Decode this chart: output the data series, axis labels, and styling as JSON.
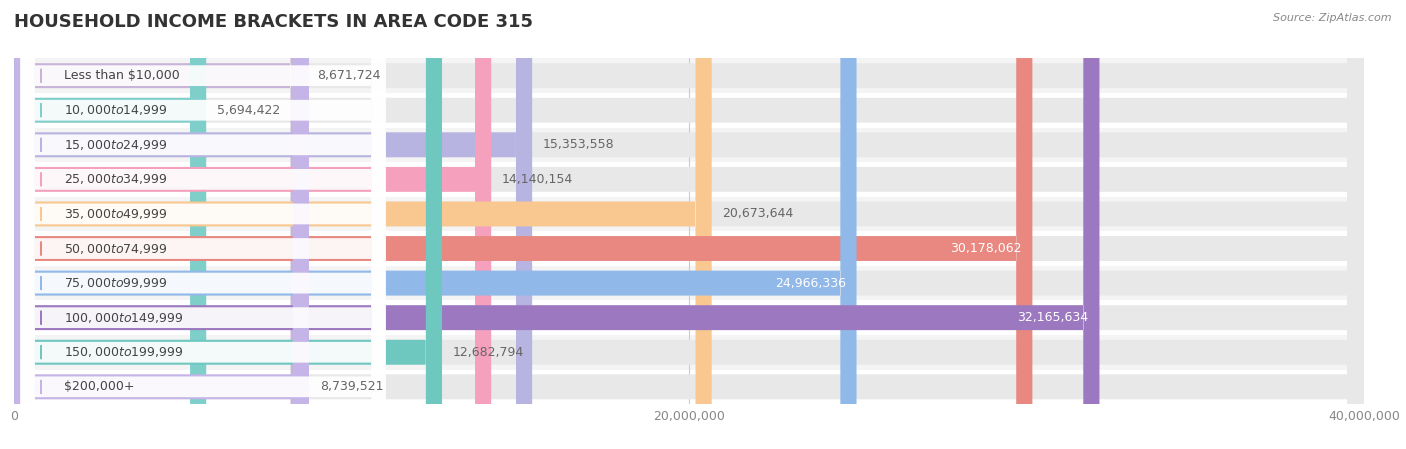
{
  "title": "HOUSEHOLD INCOME BRACKETS IN AREA CODE 315",
  "source": "Source: ZipAtlas.com",
  "categories": [
    "Less than $10,000",
    "$10,000 to $14,999",
    "$15,000 to $24,999",
    "$25,000 to $34,999",
    "$35,000 to $49,999",
    "$50,000 to $74,999",
    "$75,000 to $99,999",
    "$100,000 to $149,999",
    "$150,000 to $199,999",
    "$200,000+"
  ],
  "values": [
    8671724,
    5694422,
    15353558,
    14140154,
    20673644,
    30178062,
    24966336,
    32165634,
    12682794,
    8739521
  ],
  "bar_colors": [
    "#c8b4d8",
    "#7ececa",
    "#b8b4e2",
    "#f5a0bc",
    "#f8c890",
    "#e88880",
    "#90b8e8",
    "#9c78c0",
    "#6ec8c0",
    "#c4b4e8"
  ],
  "value_labels": [
    "8,671,724",
    "5,694,422",
    "15,353,558",
    "14,140,154",
    "20,673,644",
    "30,178,062",
    "24,966,336",
    "32,165,634",
    "12,682,794",
    "8,739,521"
  ],
  "xlim": [
    0,
    40000000
  ],
  "xticks": [
    0,
    20000000,
    40000000
  ],
  "xtick_labels": [
    "0",
    "20,000,000",
    "40,000,000"
  ],
  "background_color": "#ffffff",
  "row_bg_color": "#f0f0f0",
  "title_fontsize": 13,
  "label_fontsize": 9,
  "value_fontsize": 9,
  "inside_threshold": 22000000
}
